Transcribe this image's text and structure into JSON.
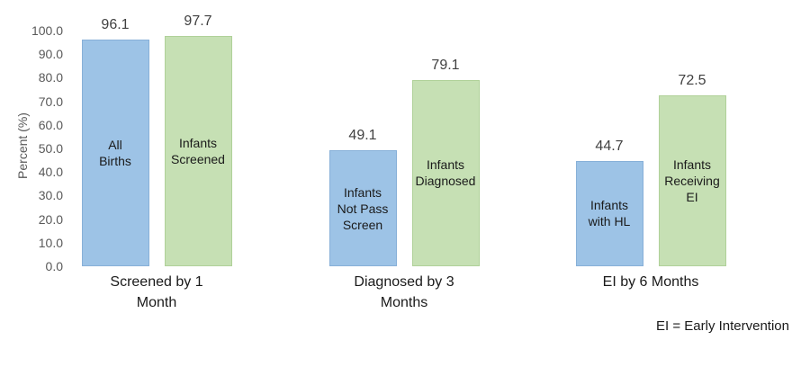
{
  "chart_data": {
    "type": "bar",
    "title": "",
    "xlabel": "",
    "ylabel": "Percent (%)",
    "ylim": [
      0,
      100
    ],
    "grid": false,
    "legend_position": "none",
    "yticks": [
      0,
      10,
      20,
      30,
      40,
      50,
      60,
      70,
      80,
      90,
      100
    ],
    "ytick_labels": [
      "0.0",
      "10.0",
      "20.0",
      "30.0",
      "40.0",
      "50.0",
      "60.0",
      "70.0",
      "80.0",
      "90.0",
      "100.0"
    ],
    "categories": [
      "Screened by 1\nMonth",
      "Diagnosed by 3\nMonths",
      "EI by 6 Months"
    ],
    "series": [
      {
        "name": "blue-series",
        "color": "#9DC3E6",
        "border_color": "#87B0D8",
        "values": [
          96.1,
          49.1,
          44.7
        ],
        "bar_labels": [
          "All\nBirths",
          "Infants\nNot Pass\nScreen",
          "Infants\nwith HL"
        ]
      },
      {
        "name": "green-series",
        "color": "#C6E0B4",
        "border_color": "#B0D199",
        "values": [
          97.7,
          79.1,
          72.5
        ],
        "bar_labels": [
          "Infants\nScreened",
          "Infants\nDiagnosed",
          "Infants\nReceiving\nEI"
        ]
      }
    ],
    "value_labels": [
      "96.1",
      "49.1",
      "44.7",
      "97.7",
      "79.1",
      "72.5"
    ],
    "footnote": "EI = Early Intervention"
  },
  "colors": {
    "background": "#ffffff",
    "axis_text": "#595959",
    "value_label_text": "#404040",
    "category_text": "#1a1a1a"
  }
}
